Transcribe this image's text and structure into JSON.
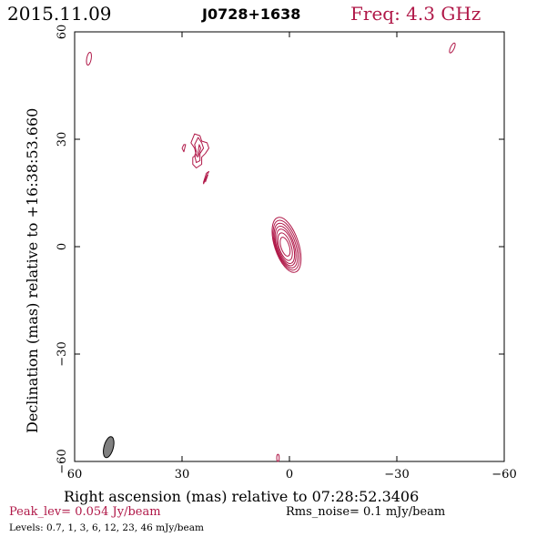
{
  "header": {
    "date": "2015.11.09",
    "source": "J0728+1638",
    "freq": "Freq: 4.3 GHz"
  },
  "colors": {
    "contour": "#b01848",
    "axis": "#000000",
    "beam_fill": "#808080",
    "peak_text": "#b01848"
  },
  "chart_data": {
    "type": "contour",
    "xlabel": "Right ascension (mas) relative to 07:28:52.3406",
    "ylabel": "Declination (mas) relative to +16:38:53.660",
    "xlim": [
      60,
      -60
    ],
    "ylim": [
      -60,
      60
    ],
    "x_ticks": [
      60,
      30,
      0,
      -30,
      -60
    ],
    "y_ticks": [
      -60,
      -30,
      0,
      30,
      60
    ],
    "x_tick_labels": [
      "60",
      "30",
      "0",
      "−30",
      "−60"
    ],
    "y_tick_labels": [
      "−60",
      "−30",
      "0",
      "30",
      "60"
    ],
    "contour_levels_mJy": [
      0.7,
      1,
      3,
      6,
      12,
      23,
      46
    ],
    "components": [
      {
        "ra": 0.5,
        "dec": 0.0,
        "pa": -18,
        "aspect": 0.42,
        "levels": [
          {
            "major": 16,
            "cx": 0.3,
            "cy": 0.5
          },
          {
            "major": 14.5,
            "cx": 0.4,
            "cy": 0.4
          },
          {
            "major": 13,
            "cx": 0.5,
            "cy": 0.3
          },
          {
            "major": 11.5,
            "cx": 0.6,
            "cy": 0.2
          },
          {
            "major": 10,
            "cx": 0.6,
            "cy": 0.1
          },
          {
            "major": 8,
            "cx": 0.7,
            "cy": 0.0
          },
          {
            "major": 5.5,
            "cx": 0.7,
            "cy": 0.0
          }
        ]
      },
      {
        "ra": 28.5,
        "dec": 26.5,
        "pa": 0,
        "aspect": 1.0,
        "paths": [
          [
            [
              27.0,
              25.0
            ],
            [
              26.0,
              25.5
            ],
            [
              26.5,
              27.5
            ],
            [
              27.5,
              29.0
            ],
            [
              26.5,
              31.5
            ],
            [
              25.0,
              31.0
            ],
            [
              24.5,
              29.5
            ],
            [
              23.0,
              29.0
            ],
            [
              22.5,
              27.5
            ],
            [
              23.5,
              26.0
            ],
            [
              24.5,
              25.0
            ],
            [
              24.5,
              23.0
            ],
            [
              26.0,
              22.0
            ],
            [
              27.0,
              23.0
            ],
            [
              27.0,
              25.0
            ]
          ],
          [
            [
              26.5,
              25.5
            ],
            [
              26.0,
              26.5
            ],
            [
              26.5,
              28.5
            ],
            [
              25.5,
              30.5
            ],
            [
              24.5,
              29.0
            ],
            [
              24.0,
              27.5
            ],
            [
              25.0,
              26.0
            ],
            [
              25.0,
              24.0
            ],
            [
              26.0,
              23.5
            ],
            [
              26.5,
              25.5
            ]
          ],
          [
            [
              25.8,
              25.0
            ],
            [
              25.5,
              26.5
            ],
            [
              25.2,
              28.5
            ],
            [
              24.8,
              27.5
            ],
            [
              25.5,
              25.0
            ]
          ],
          [
            [
              30.0,
              27.5
            ],
            [
              29.5,
              28.5
            ],
            [
              29.0,
              28.5
            ],
            [
              29.5,
              26.5
            ],
            [
              30.0,
              27.5
            ]
          ],
          [
            [
              24.0,
              17.5
            ],
            [
              23.0,
              20.0
            ],
            [
              22.5,
              21.0
            ],
            [
              23.2,
              20.5
            ],
            [
              24.0,
              18.0
            ],
            [
              24.0,
              17.5
            ]
          ],
          [
            [
              23.5,
              18.0
            ],
            [
              22.8,
              20.0
            ],
            [
              23.6,
              18.5
            ]
          ]
        ]
      },
      {
        "ra": 56.0,
        "dec": 52.5,
        "pa": 10,
        "aspect": 0.35,
        "levels": [
          {
            "major": 3.6,
            "cx": 0,
            "cy": 0
          }
        ]
      },
      {
        "ra": -45.5,
        "dec": 55.5,
        "pa": 25,
        "aspect": 0.35,
        "levels": [
          {
            "major": 3.0,
            "cx": 0,
            "cy": 0
          }
        ]
      },
      {
        "ra": 3.2,
        "dec": -59.0,
        "pa": 0,
        "aspect": 0.35,
        "levels": [
          {
            "major": 2.0,
            "cx": 0,
            "cy": 0
          }
        ]
      }
    ],
    "beam": {
      "ra": 50.5,
      "dec": -56.0,
      "major_mas": 6.0,
      "minor_mas": 2.6,
      "pa": 15
    }
  },
  "footer": {
    "peak": "Peak_lev=  0.054 Jy/beam",
    "rms": "Rms_noise=  0.1 mJy/beam",
    "levels": "Levels: 0.7,   1,   3,   6,  12,  23,  46 mJy/beam"
  }
}
